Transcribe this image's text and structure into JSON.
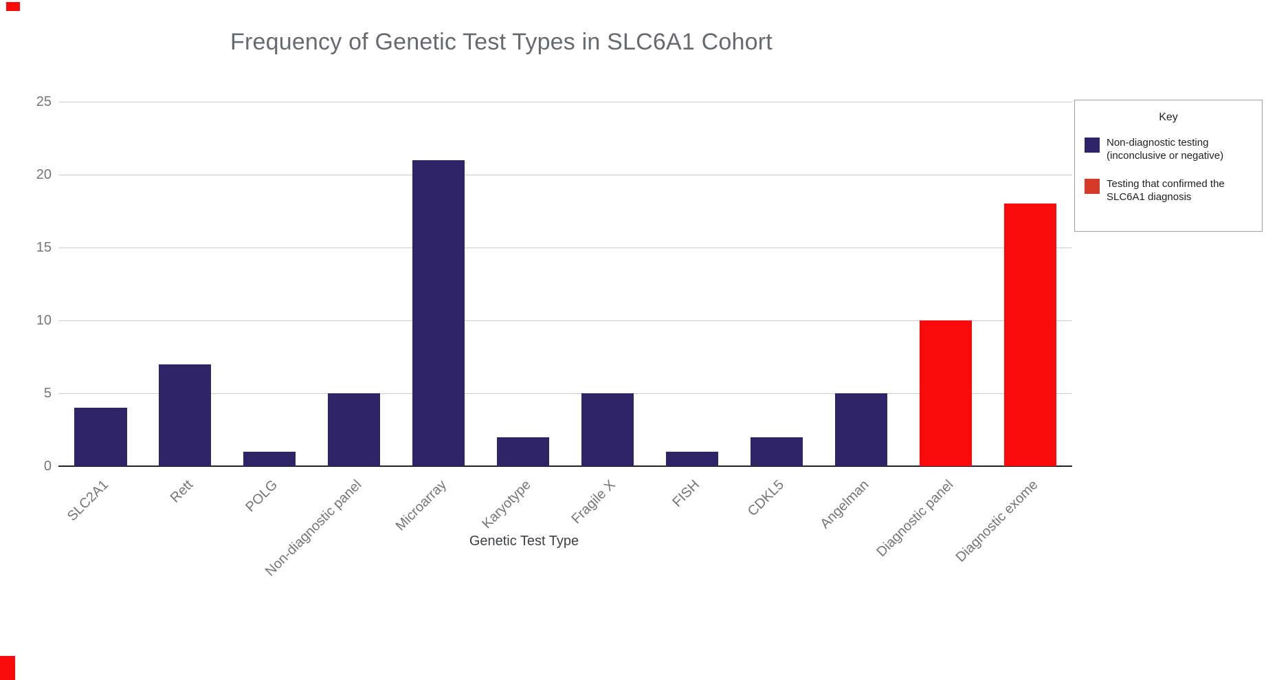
{
  "title": "Frequency of Genetic Test Types in SLC6A1 Cohort",
  "legend": {
    "title": "Key",
    "items": [
      {
        "label": "Non-diagnostic testing (inconclusive or negative)",
        "color": "#2e2467"
      },
      {
        "label": "Testing that confirmed the SLC6A1 diagnosis",
        "color": "#d43a27"
      }
    ]
  },
  "chart_data": {
    "type": "bar",
    "title": "Frequency of Genetic Test Types in SLC6A1 Cohort",
    "xlabel": "Genetic Test Type",
    "ylabel": "",
    "ylim": [
      0,
      25
    ],
    "yticks": [
      0,
      5,
      10,
      15,
      20,
      25
    ],
    "grid": true,
    "legend_position": "right",
    "categories": [
      "SLC2A1",
      "Rett",
      "POLG",
      "Non-diagnostic panel",
      "Microarray",
      "Karyotype",
      "Fragile X",
      "FISH",
      "CDKL5",
      "Angelman",
      "Diagnostic panel",
      "Diagnostic exome"
    ],
    "values": [
      4,
      7,
      1,
      5,
      21,
      2,
      5,
      1,
      2,
      5,
      10,
      18
    ],
    "groups": [
      "non",
      "non",
      "non",
      "non",
      "non",
      "non",
      "non",
      "non",
      "non",
      "non",
      "diag",
      "diag"
    ],
    "colors": {
      "non": "#2e2467",
      "diag": "#f90b0b"
    },
    "series_names": {
      "non": "Non-diagnostic testing (inconclusive or negative)",
      "diag": "Testing that confirmed the SLC6A1 diagnosis"
    }
  }
}
